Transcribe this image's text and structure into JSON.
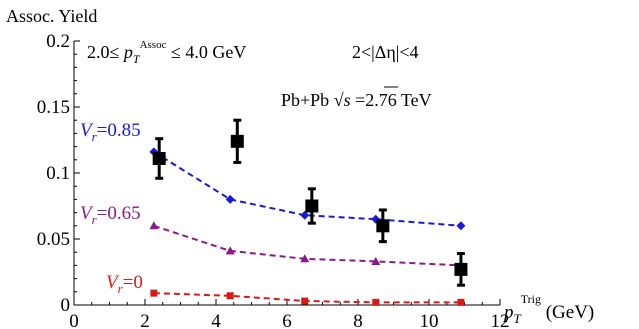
{
  "chart_data": {
    "type": "scatter",
    "y_axis_label": "Assoc. Yield",
    "x_axis_label": {
      "prefix": "p",
      "sub": "T",
      "sup": "Trig",
      "unit": "(GeV)"
    },
    "xlim": [
      0,
      12
    ],
    "ylim": [
      0,
      0.2
    ],
    "x_ticks": [
      0,
      2,
      4,
      6,
      8,
      10,
      12
    ],
    "x_tick_labels": [
      "0",
      "2",
      "4",
      "6",
      "8",
      "10",
      "12"
    ],
    "y_ticks": [
      0,
      0.05,
      0.1,
      0.15,
      0.2
    ],
    "y_tick_labels": [
      "0",
      "0.05",
      "0.1",
      "0.15",
      "0.2"
    ],
    "annotations": {
      "assoc_range": {
        "pre": "2.0≤ ",
        "p": "p",
        "sub": "T",
        "sup": "Assoc",
        "post": "≤ 4.0 GeV"
      },
      "eta_range": "2<|Δη|<4",
      "system": {
        "pre": "Pb+Pb ",
        "sqrt": "√",
        "s": "s",
        "post": " =2.76 TeV"
      }
    },
    "data_series": {
      "marker": "square",
      "color": "#000000",
      "points": [
        {
          "x": 2.4,
          "y": 0.111,
          "err": 0.015
        },
        {
          "x": 4.6,
          "y": 0.124,
          "err": 0.016
        },
        {
          "x": 6.7,
          "y": 0.075,
          "err": 0.013
        },
        {
          "x": 8.7,
          "y": 0.06,
          "err": 0.012
        },
        {
          "x": 10.9,
          "y": 0.027,
          "err": 0.012
        }
      ]
    },
    "model_series": [
      {
        "label_v": "V",
        "label_sub": "r",
        "label_val": "=0.85",
        "color": "#1a1ad6",
        "marker": "diamond",
        "x": [
          2.25,
          4.4,
          6.5,
          8.5,
          10.9
        ],
        "y": [
          0.116,
          0.08,
          0.068,
          0.065,
          0.06
        ]
      },
      {
        "label_v": "V",
        "label_sub": "r",
        "label_val": "=0.65",
        "color": "#8a1a8a",
        "marker": "triangle",
        "x": [
          2.25,
          4.4,
          6.5,
          8.5,
          10.9
        ],
        "y": [
          0.06,
          0.041,
          0.035,
          0.033,
          0.03
        ]
      },
      {
        "label_v": "V",
        "label_sub": "r",
        "label_val": "=0",
        "color": "#d61a1a",
        "marker": "square",
        "x": [
          2.25,
          4.4,
          6.5,
          8.5,
          10.9
        ],
        "y": [
          0.009,
          0.007,
          0.003,
          0.002,
          0.002
        ]
      }
    ]
  }
}
